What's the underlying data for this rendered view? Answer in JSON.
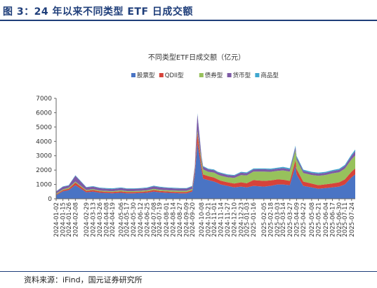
{
  "figure": {
    "label": "图 3：24 年以来不同类型 ETF 日成交额",
    "source": "资料来源：iFind，国元证券研究所"
  },
  "colors": {
    "stock": "#4a74c4",
    "qdii": "#d6433a",
    "bond": "#97c15c",
    "money": "#7d5aa6",
    "commodity": "#3fa7cf",
    "title_blue": "#1f3e7a"
  },
  "chart_data": {
    "type": "area",
    "stacked": true,
    "title": "不同类型ETF日成交额（亿元）",
    "ylim": [
      0,
      7000
    ],
    "yticks": [
      0,
      1000,
      2000,
      3000,
      4000,
      5000,
      6000,
      7000
    ],
    "legend_position": "top",
    "grid": false,
    "x_tick_labels": [
      "2024-01-02",
      "2024-01-15",
      "2024-01-26",
      "2024-02-08",
      "2024-02-29",
      "2024-03-13",
      "2024-03-26",
      "2024-04-08",
      "2024-04-19",
      "2024-05-06",
      "2024-05-17",
      "2024-05-30",
      "2024-06-12",
      "2024-06-25",
      "2024-07-08",
      "2024-07-19",
      "2024-08-01",
      "2024-08-14",
      "2024-08-27",
      "2024-09-09",
      "2024-09-20",
      "2024-10-08",
      "2024-10-21",
      "2024-11-01",
      "2024-11-14",
      "2024-11-27",
      "2024-12-10",
      "2024-12-23",
      "2025-01-03",
      "2025-01-16",
      "2025-02-05",
      "2025-02-18",
      "2025-03-03",
      "2025-03-14",
      "2025-03-27",
      "2025-04-09",
      "2025-04-22",
      "2025-05-08",
      "2025-05-21",
      "2025-06-04",
      "2025-06-17",
      "2025-06-30",
      "2025-07-11",
      "2025-07-24"
    ],
    "x": [
      "2024-01-02",
      "2024-01-15",
      "2024-01-26",
      "2024-02-08",
      "2024-02-29",
      "2024-03-13",
      "2024-03-26",
      "2024-04-08",
      "2024-04-19",
      "2024-05-06",
      "2024-05-17",
      "2024-05-30",
      "2024-06-12",
      "2024-06-25",
      "2024-07-08",
      "2024-07-19",
      "2024-08-01",
      "2024-08-14",
      "2024-08-27",
      "2024-09-09",
      "2024-09-20",
      "2024-09-25",
      "2024-09-30",
      "2024-10-08",
      "2024-10-11",
      "2024-10-21",
      "2024-11-01",
      "2024-11-08",
      "2024-11-14",
      "2024-11-27",
      "2024-12-10",
      "2024-12-23",
      "2025-01-03",
      "2025-01-16",
      "2025-02-05",
      "2025-02-18",
      "2025-03-03",
      "2025-03-14",
      "2025-03-27",
      "2025-04-07",
      "2025-04-09",
      "2025-04-22",
      "2025-05-08",
      "2025-05-21",
      "2025-06-04",
      "2025-06-17",
      "2025-06-30",
      "2025-07-11",
      "2025-07-24",
      "2025-07-31"
    ],
    "series": [
      {
        "name": "股票型",
        "key": "stock",
        "values": [
          250,
          520,
          600,
          950,
          450,
          500,
          420,
          400,
          380,
          420,
          380,
          380,
          400,
          420,
          500,
          450,
          420,
          400,
          380,
          380,
          500,
          1700,
          3900,
          2000,
          1400,
          1300,
          1200,
          1100,
          1000,
          900,
          800,
          850,
          800,
          900,
          850,
          900,
          1000,
          1000,
          950,
          2300,
          1700,
          900,
          800,
          700,
          750,
          800,
          850,
          1000,
          1500,
          1700
        ]
      },
      {
        "name": "QDII型",
        "key": "qdii",
        "values": [
          60,
          80,
          100,
          180,
          100,
          110,
          100,
          90,
          90,
          100,
          90,
          90,
          90,
          100,
          110,
          100,
          100,
          90,
          90,
          90,
          100,
          250,
          700,
          350,
          300,
          280,
          280,
          260,
          260,
          250,
          260,
          300,
          280,
          400,
          400,
          380,
          350,
          330,
          300,
          400,
          380,
          300,
          260,
          250,
          260,
          270,
          300,
          350,
          400,
          420
        ]
      },
      {
        "name": "债券型",
        "key": "bond",
        "values": [
          50,
          60,
          70,
          70,
          60,
          60,
          60,
          60,
          60,
          70,
          70,
          70,
          70,
          70,
          80,
          80,
          80,
          90,
          90,
          90,
          90,
          100,
          200,
          300,
          350,
          300,
          350,
          330,
          350,
          350,
          400,
          500,
          550,
          600,
          650,
          600,
          600,
          650,
          650,
          700,
          650,
          600,
          600,
          650,
          650,
          700,
          700,
          750,
          850,
          900
        ]
      },
      {
        "name": "货币型",
        "key": "money",
        "values": [
          150,
          170,
          150,
          400,
          180,
          170,
          160,
          150,
          150,
          160,
          150,
          150,
          150,
          160,
          180,
          170,
          160,
          150,
          150,
          150,
          160,
          200,
          1100,
          250,
          180,
          170,
          160,
          150,
          160,
          150,
          150,
          170,
          150,
          150,
          160,
          150,
          150,
          160,
          150,
          200,
          170,
          150,
          150,
          150,
          150,
          160,
          170,
          180,
          250,
          300
        ]
      },
      {
        "name": "商品型",
        "key": "commodity",
        "values": [
          20,
          30,
          30,
          40,
          30,
          40,
          40,
          50,
          50,
          40,
          40,
          40,
          40,
          40,
          40,
          40,
          40,
          40,
          40,
          40,
          40,
          50,
          60,
          60,
          50,
          50,
          50,
          50,
          50,
          50,
          50,
          60,
          60,
          60,
          60,
          70,
          70,
          80,
          80,
          100,
          90,
          80,
          70,
          70,
          70,
          70,
          70,
          80,
          100,
          110
        ]
      }
    ]
  }
}
